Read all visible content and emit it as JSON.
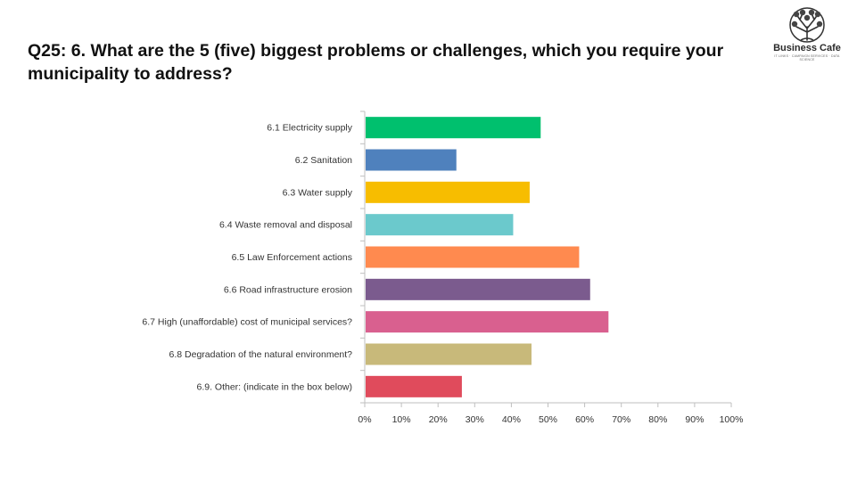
{
  "title": "Q25: 6. What are the 5 (five) biggest problems or challenges, which you require your municipality to address?",
  "logo": {
    "name": "Business Cafe",
    "tagline": "IT LINKS · CAMPAIGN SERVICES · DATA SCIENCE"
  },
  "chart_data": {
    "type": "bar",
    "orientation": "horizontal",
    "categories": [
      "6.1 Electricity supply",
      "6.2 Sanitation",
      "6.3 Water supply",
      "6.4 Waste removal and disposal",
      "6.5 Law Enforcement actions",
      "6.6 Road infrastructure erosion",
      "6.7 High (unaffordable) cost of municipal services?",
      "6.8 Degradation of the natural environment?",
      "6.9. Other: (indicate in the box below)"
    ],
    "values": [
      48,
      25,
      45,
      40.5,
      58.5,
      61.5,
      66.5,
      45.5,
      26.5
    ],
    "colors": [
      "#00c06e",
      "#4f81bd",
      "#f7bd00",
      "#6bc9cc",
      "#ff8a4f",
      "#7b5b8e",
      "#d9608f",
      "#c8b97a",
      "#e04b5c"
    ],
    "xlim": [
      0,
      100
    ],
    "xticks": [
      "0%",
      "10%",
      "20%",
      "30%",
      "40%",
      "50%",
      "60%",
      "70%",
      "80%",
      "90%",
      "100%"
    ],
    "xlabel": "",
    "ylabel": "",
    "grid": false,
    "legend": "none"
  }
}
